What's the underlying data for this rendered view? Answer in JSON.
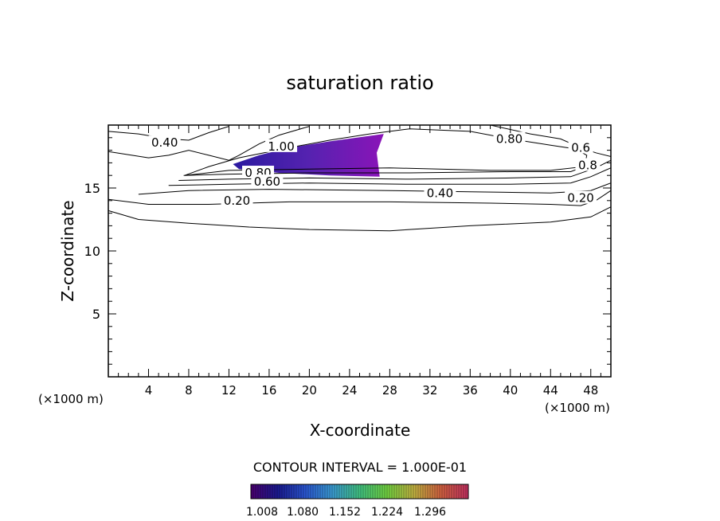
{
  "chart_data": {
    "type": "contour",
    "title": "saturation ratio",
    "xlabel": "X-coordinate",
    "ylabel": "Z-coordinate",
    "x_unit": "(×1000 m)",
    "y_unit": "(×1000 m)",
    "xlim": [
      0,
      50
    ],
    "ylim": [
      0,
      20
    ],
    "x_ticks": [
      4,
      8,
      12,
      16,
      20,
      24,
      28,
      32,
      36,
      40,
      44,
      48
    ],
    "y_ticks": [
      5,
      10,
      15
    ],
    "contour_interval": "CONTOUR INTERVAL = 1.000E-01",
    "contour_labels": [
      {
        "text": "0.40",
        "x": 5.6,
        "z": 18.6
      },
      {
        "text": "0.80",
        "x": 39.9,
        "z": 18.9
      },
      {
        "text": "1.00",
        "x": 17.2,
        "z": 18.3
      },
      {
        "text": "0.80",
        "x": 14.9,
        "z": 16.2
      },
      {
        "text": "0.60",
        "x": 15.8,
        "z": 15.5
      },
      {
        "text": "0.40",
        "x": 33.0,
        "z": 14.6
      },
      {
        "text": "0.20",
        "x": 12.8,
        "z": 14.0
      },
      {
        "text": "0.20",
        "x": 47.0,
        "z": 14.2
      },
      {
        "text": "0.6",
        "x": 47.0,
        "z": 18.2
      },
      {
        "text": "0.8",
        "x": 47.7,
        "z": 16.8
      }
    ],
    "contour_lines": [
      {
        "level": 0.2,
        "points": [
          [
            0,
            13.2
          ],
          [
            3,
            12.5
          ],
          [
            8,
            12.2
          ],
          [
            14,
            11.9
          ],
          [
            20,
            11.7
          ],
          [
            28,
            11.6
          ],
          [
            36,
            12.0
          ],
          [
            44,
            12.3
          ],
          [
            48,
            12.7
          ],
          [
            50,
            13.5
          ]
        ]
      },
      {
        "level": 0.3,
        "points": [
          [
            0,
            14.1
          ],
          [
            4,
            13.7
          ],
          [
            10,
            13.7
          ],
          [
            18,
            13.9
          ],
          [
            28,
            13.9
          ],
          [
            38,
            13.8
          ],
          [
            44,
            13.7
          ],
          [
            47,
            13.6
          ],
          [
            48.5,
            14.0
          ],
          [
            50,
            14.8
          ]
        ]
      },
      {
        "level": 0.4,
        "points": [
          [
            3,
            14.5
          ],
          [
            8,
            14.8
          ],
          [
            16,
            14.9
          ],
          [
            28,
            14.8
          ],
          [
            36,
            14.7
          ],
          [
            44,
            14.6
          ],
          [
            48,
            14.8
          ],
          [
            50,
            15.4
          ]
        ]
      },
      {
        "level": 0.5,
        "points": [
          [
            6,
            15.2
          ],
          [
            12,
            15.3
          ],
          [
            20,
            15.4
          ],
          [
            30,
            15.3
          ],
          [
            40,
            15.3
          ],
          [
            46,
            15.4
          ],
          [
            48,
            15.9
          ],
          [
            50,
            16.6
          ]
        ]
      },
      {
        "level": 0.6,
        "points": [
          [
            7,
            15.6
          ],
          [
            12,
            15.7
          ],
          [
            20,
            15.8
          ],
          [
            30,
            15.7
          ],
          [
            40,
            15.8
          ],
          [
            46,
            15.9
          ],
          [
            48.5,
            16.6
          ],
          [
            50,
            17.2
          ]
        ]
      },
      {
        "level": 0.7,
        "points": [
          [
            7.5,
            16.0
          ],
          [
            12,
            16.1
          ],
          [
            20,
            16.2
          ],
          [
            30,
            16.2
          ],
          [
            40,
            16.3
          ],
          [
            46,
            16.3
          ],
          [
            48,
            16.9
          ]
        ]
      },
      {
        "level": 0.8,
        "points": [
          [
            7.6,
            16.0
          ],
          [
            10,
            16.7
          ],
          [
            13,
            17.4
          ],
          [
            18,
            18.2
          ],
          [
            22,
            18.8
          ],
          [
            26,
            19.3
          ],
          [
            30,
            19.7
          ],
          [
            36,
            19.5
          ],
          [
            40,
            18.9
          ],
          [
            44,
            18.4
          ],
          [
            46.5,
            18.1
          ],
          [
            47.6,
            17.6
          ],
          [
            47.4,
            16.7
          ],
          [
            44,
            16.4
          ],
          [
            38,
            16.4
          ],
          [
            28,
            16.6
          ],
          [
            20,
            16.5
          ],
          [
            12,
            16.4
          ],
          [
            7.6,
            16.0
          ]
        ]
      },
      {
        "level": 0.4,
        "points": [
          [
            0,
            19.5
          ],
          [
            3,
            19.3
          ],
          [
            6,
            18.9
          ],
          [
            8,
            18.8
          ],
          [
            10,
            19.4
          ],
          [
            12,
            19.9
          ]
        ]
      },
      {
        "level": 0.4,
        "points": [
          [
            0,
            17.9
          ],
          [
            4,
            17.4
          ],
          [
            6,
            17.6
          ],
          [
            8,
            18.0
          ],
          [
            10,
            17.6
          ],
          [
            12,
            17.2
          ],
          [
            13,
            17.6
          ],
          [
            15,
            18.5
          ],
          [
            17,
            19.2
          ],
          [
            20,
            19.9
          ]
        ]
      },
      {
        "level": 0.4,
        "points": [
          [
            38,
            20
          ],
          [
            42,
            19.3
          ],
          [
            45,
            18.9
          ],
          [
            47,
            18.2
          ],
          [
            48.5,
            17.8
          ],
          [
            50,
            17.5
          ]
        ]
      }
    ],
    "shaded_region": {
      "min_value": 1.008,
      "max_value": 1.296,
      "outline": [
        [
          12.4,
          16.9
        ],
        [
          15,
          17.6
        ],
        [
          18,
          18.2
        ],
        [
          22,
          18.7
        ],
        [
          27.4,
          19.3
        ],
        [
          26.7,
          17.8
        ],
        [
          27.0,
          15.9
        ],
        [
          22,
          16.0
        ],
        [
          17,
          16.2
        ],
        [
          13,
          16.5
        ],
        [
          12.4,
          16.9
        ]
      ]
    },
    "colorbar": {
      "ticks": [
        "1.008",
        "1.080",
        "1.152",
        "1.224",
        "1.296"
      ],
      "colors": [
        "#4a0070",
        "#1a1a90",
        "#2a55d0",
        "#3a9ad0",
        "#40c080",
        "#70d040",
        "#c0b040",
        "#d06040",
        "#c03060"
      ]
    },
    "colors": {
      "fill_low": "#2a1aa0",
      "fill_mid": "#5522b0",
      "fill_high": "#8a14b8"
    }
  }
}
